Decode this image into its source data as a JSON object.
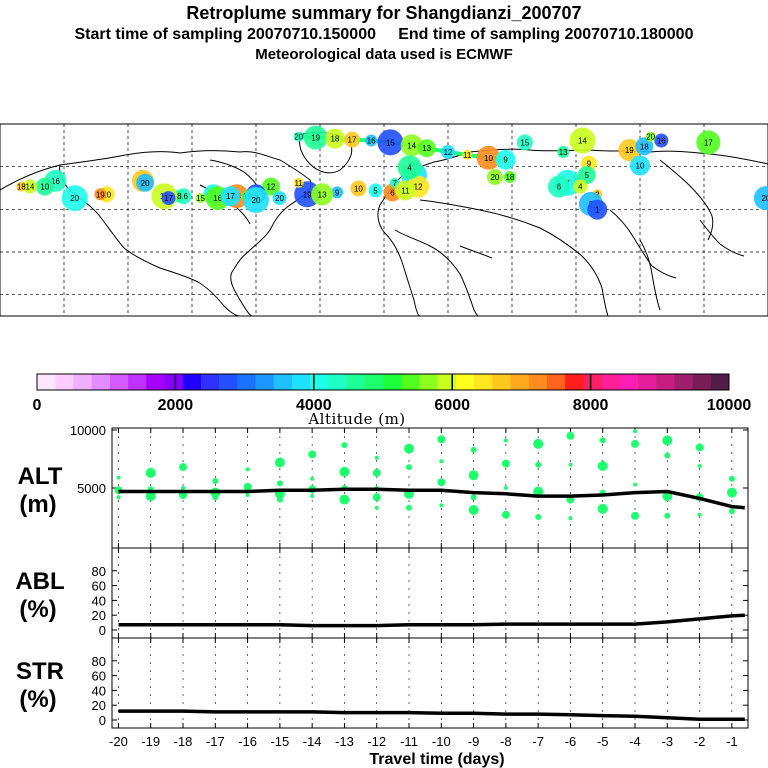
{
  "header": {
    "title": "Retroplume summary for Shangdianzi_200707",
    "sampling": "Start time of sampling 20070710.150000     End time of sampling 20070710.180000",
    "met": "Meteorological data used is ECMWF"
  },
  "colorbar": {
    "colors": [
      "#ffe6ff",
      "#ffccff",
      "#f0b0ff",
      "#e28cff",
      "#d25aff",
      "#c030ff",
      "#a800ff",
      "#8a00ff",
      "#2000ff",
      "#3030ff",
      "#2050ff",
      "#1a73ff",
      "#1e96ff",
      "#1ebeff",
      "#1ee1ff",
      "#1effea",
      "#1effc3",
      "#1eff96",
      "#1eff6e",
      "#1eff3c",
      "#50ff1e",
      "#8cff1e",
      "#c8ff1e",
      "#ffff1e",
      "#ffe61e",
      "#ffc81e",
      "#ffaa1e",
      "#ff8c1e",
      "#ff641e",
      "#ff1e1e",
      "#ff1e64",
      "#ff1e96",
      "#ff1eb4",
      "#e61e9b",
      "#c81e82",
      "#a01e6e",
      "#7a1e5a",
      "#501e46"
    ],
    "tick_labels": [
      "0",
      "2000",
      "4000",
      "6000",
      "8000",
      "10000"
    ],
    "label": "Altitude (m)"
  },
  "map_labels": [
    {
      "text": "20",
      "lon": -100,
      "lat": 78
    },
    {
      "text": "19",
      "lon": -92,
      "lat": 77.5
    },
    {
      "text": "18",
      "lon": -83,
      "lat": 77
    },
    {
      "text": "17",
      "lon": -75,
      "lat": 76.5
    },
    {
      "text": "16",
      "lon": -66,
      "lat": 76
    },
    {
      "text": "15",
      "lon": -57,
      "lat": 75
    },
    {
      "text": "14",
      "lon": -47,
      "lat": 73.5
    },
    {
      "text": "13",
      "lon": -40,
      "lat": 72
    },
    {
      "text": "12",
      "lon": -30,
      "lat": 70
    },
    {
      "text": "11",
      "lon": -21,
      "lat": 68.5
    },
    {
      "text": "10",
      "lon": -11,
      "lat": 67
    },
    {
      "text": "9",
      "lon": -3,
      "lat": 66
    },
    {
      "text": "15",
      "lon": 6,
      "lat": 75
    },
    {
      "text": "13",
      "lon": 24,
      "lat": 70
    },
    {
      "text": "14",
      "lon": 33,
      "lat": 76
    },
    {
      "text": "19",
      "lon": 55,
      "lat": 71
    },
    {
      "text": "18",
      "lon": 62,
      "lat": 73
    },
    {
      "text": "16",
      "lon": 70,
      "lat": 76
    },
    {
      "text": "20",
      "lon": 65,
      "lat": 78
    },
    {
      "text": "17",
      "lon": 92,
      "lat": 75
    },
    {
      "text": "10",
      "lon": 60,
      "lat": 63
    },
    {
      "text": "9",
      "lon": 36,
      "lat": 64
    },
    {
      "text": "8",
      "lon": 30,
      "lat": 55
    },
    {
      "text": "7",
      "lon": 26,
      "lat": 54
    },
    {
      "text": "6",
      "lon": 22,
      "lat": 52
    },
    {
      "text": "5",
      "lon": 35,
      "lat": 58
    },
    {
      "text": "4",
      "lon": 32,
      "lat": 52
    },
    {
      "text": "3",
      "lon": 40,
      "lat": 48
    },
    {
      "text": "2",
      "lon": 37,
      "lat": 43
    },
    {
      "text": "1",
      "lon": 40,
      "lat": 40
    },
    {
      "text": "20",
      "lon": -8,
      "lat": 57
    },
    {
      "text": "18",
      "lon": -1,
      "lat": 57
    },
    {
      "text": "8",
      "lon": -46,
      "lat": 58
    },
    {
      "text": "12",
      "lon": -44,
      "lat": 52
    },
    {
      "text": "6",
      "lon": -56,
      "lat": 49
    },
    {
      "text": "5",
      "lon": -64,
      "lat": 50
    },
    {
      "text": "7",
      "lon": -55,
      "lat": 54
    },
    {
      "text": "4",
      "lon": -48,
      "lat": 62
    },
    {
      "text": "11",
      "lon": -50,
      "lat": 50
    },
    {
      "text": "10",
      "lon": -72,
      "lat": 51
    },
    {
      "text": "9",
      "lon": -82,
      "lat": 49
    },
    {
      "text": "19",
      "lon": -96,
      "lat": 48
    },
    {
      "text": "13",
      "lon": -89,
      "lat": 48
    },
    {
      "text": "12",
      "lon": -113,
      "lat": 52
    },
    {
      "text": "20",
      "lon": -109,
      "lat": 46
    },
    {
      "text": "11",
      "lon": -100,
      "lat": 54
    },
    {
      "text": "14",
      "lon": -129,
      "lat": 47
    },
    {
      "text": "11",
      "lon": -140,
      "lat": 48
    },
    {
      "text": "16",
      "lon": -154,
      "lat": 47
    },
    {
      "text": "18",
      "lon": -157,
      "lat": 47
    },
    {
      "text": "17",
      "lon": -163,
      "lat": 47
    },
    {
      "text": "19",
      "lon": -173,
      "lat": 55
    },
    {
      "text": "20",
      "lon": -172,
      "lat": 54
    },
    {
      "text": "17",
      "lon": -161,
      "lat": 46
    },
    {
      "text": "15",
      "lon": -146,
      "lat": 46
    },
    {
      "text": "16",
      "lon": -138,
      "lat": 46
    },
    {
      "text": "17",
      "lon": -132,
      "lat": 47
    },
    {
      "text": "20",
      "lon": -190,
      "lat": 48
    },
    {
      "text": "19",
      "lon": -193,
      "lat": 48
    },
    {
      "text": "20",
      "lon": -205,
      "lat": 46
    },
    {
      "text": "16",
      "lon": -214,
      "lat": 55
    },
    {
      "text": "10",
      "lon": -219,
      "lat": 52
    },
    {
      "text": "14",
      "lon": -226,
      "lat": 52
    },
    {
      "text": "18",
      "lon": -230,
      "lat": 52
    },
    {
      "text": "20",
      "lon": 119,
      "lat": 46
    },
    {
      "text": "10",
      "lon": -120,
      "lat": 48
    },
    {
      "text": "16",
      "lon": -121,
      "lat": 47
    },
    {
      "text": "15",
      "lon": -124,
      "lat": 47
    },
    {
      "text": "20",
      "lon": -120,
      "lat": 45
    }
  ],
  "panels": {
    "alt": {
      "label_top": "ALT",
      "label_bottom": "(m)",
      "ylim": [
        0,
        10000
      ],
      "yticks": [
        "10000",
        "5000"
      ]
    },
    "abl": {
      "label_top": "ABL",
      "label_bottom": "(%)",
      "ylim": [
        0,
        100
      ],
      "yticks": [
        "80",
        "60",
        "40",
        "20",
        "0"
      ]
    },
    "str": {
      "label_top": "STR",
      "label_bottom": "(%)",
      "ylim": [
        0,
        100
      ],
      "yticks": [
        "80",
        "60",
        "40",
        "20",
        "0"
      ]
    }
  },
  "chart_data": {
    "type": "line",
    "title": "Retroplume summary for Shangdianzi_200707",
    "xlabel": "Travel time (days)",
    "xlim": [
      -20.2,
      -0.5
    ],
    "x": [
      -20,
      -19,
      -18,
      -17,
      -16,
      -15,
      -14,
      -13,
      -12,
      -11,
      -10,
      -9,
      -8,
      -7,
      -6,
      -5,
      -4,
      -3,
      -2,
      -1,
      -0.6
    ],
    "x_ticks": [
      "-20",
      "-19",
      "-18",
      "-17",
      "-16",
      "-15",
      "-14",
      "-13",
      "-12",
      "-11",
      "-10",
      "-9",
      "-8",
      "-7",
      "-6",
      "-5",
      "-4",
      "-3",
      "-2",
      "-1"
    ],
    "series": [
      {
        "name": "ALT (m)",
        "values": [
          4700,
          4700,
          4700,
          4700,
          4700,
          4800,
          4800,
          4900,
          4900,
          4800,
          4800,
          4600,
          4500,
          4300,
          4300,
          4400,
          4600,
          4700,
          4100,
          3400,
          3300
        ]
      },
      {
        "name": "ABL (%)",
        "values": [
          7,
          7,
          7,
          7,
          7,
          7,
          6,
          6,
          6,
          7,
          7,
          7,
          8,
          8,
          8,
          8,
          8,
          11,
          15,
          19,
          20
        ]
      },
      {
        "name": "STR (%)",
        "values": [
          12,
          12,
          12,
          11,
          11,
          11,
          11,
          10,
          10,
          10,
          9,
          9,
          8,
          8,
          7,
          6,
          5,
          3,
          1,
          1,
          1
        ]
      }
    ],
    "alt_clusters": [
      {
        "x": -20,
        "values": [
          5900,
          4800,
          4200
        ]
      },
      {
        "x": -19,
        "values": [
          6300,
          4900,
          4300
        ]
      },
      {
        "x": -18,
        "values": [
          6800,
          5000,
          4400
        ]
      },
      {
        "x": -17,
        "values": [
          5600,
          4600,
          4200
        ]
      },
      {
        "x": -16,
        "values": [
          6600,
          5100,
          4400
        ]
      },
      {
        "x": -15,
        "values": [
          7200,
          5400,
          4500,
          4000
        ]
      },
      {
        "x": -14,
        "values": [
          7900,
          5800,
          4900,
          4300
        ]
      },
      {
        "x": -13,
        "values": [
          8700,
          6400,
          5000,
          4000
        ]
      },
      {
        "x": -12,
        "values": [
          7600,
          6300,
          5000,
          4200,
          3300
        ]
      },
      {
        "x": -11,
        "values": [
          8400,
          6800,
          4500,
          3300
        ]
      },
      {
        "x": -10,
        "values": [
          9200,
          7300,
          5500,
          3500
        ]
      },
      {
        "x": -9,
        "values": [
          8300,
          6100,
          4200,
          3100
        ]
      },
      {
        "x": -8,
        "values": [
          9100,
          7100,
          5000,
          2700
        ]
      },
      {
        "x": -7,
        "values": [
          8800,
          7000,
          4700,
          2500
        ]
      },
      {
        "x": -6,
        "values": [
          9500,
          7000,
          4000,
          2400
        ]
      },
      {
        "x": -5,
        "values": [
          9100,
          6900,
          4600,
          3200
        ]
      },
      {
        "x": -4,
        "values": [
          9900,
          8800,
          5300,
          2600
        ]
      },
      {
        "x": -3,
        "values": [
          9100,
          7800,
          4300,
          2600
        ]
      },
      {
        "x": -2,
        "values": [
          8500,
          6900,
          4200,
          2700
        ]
      },
      {
        "x": -1,
        "values": [
          5800,
          4600,
          3000
        ]
      }
    ]
  }
}
